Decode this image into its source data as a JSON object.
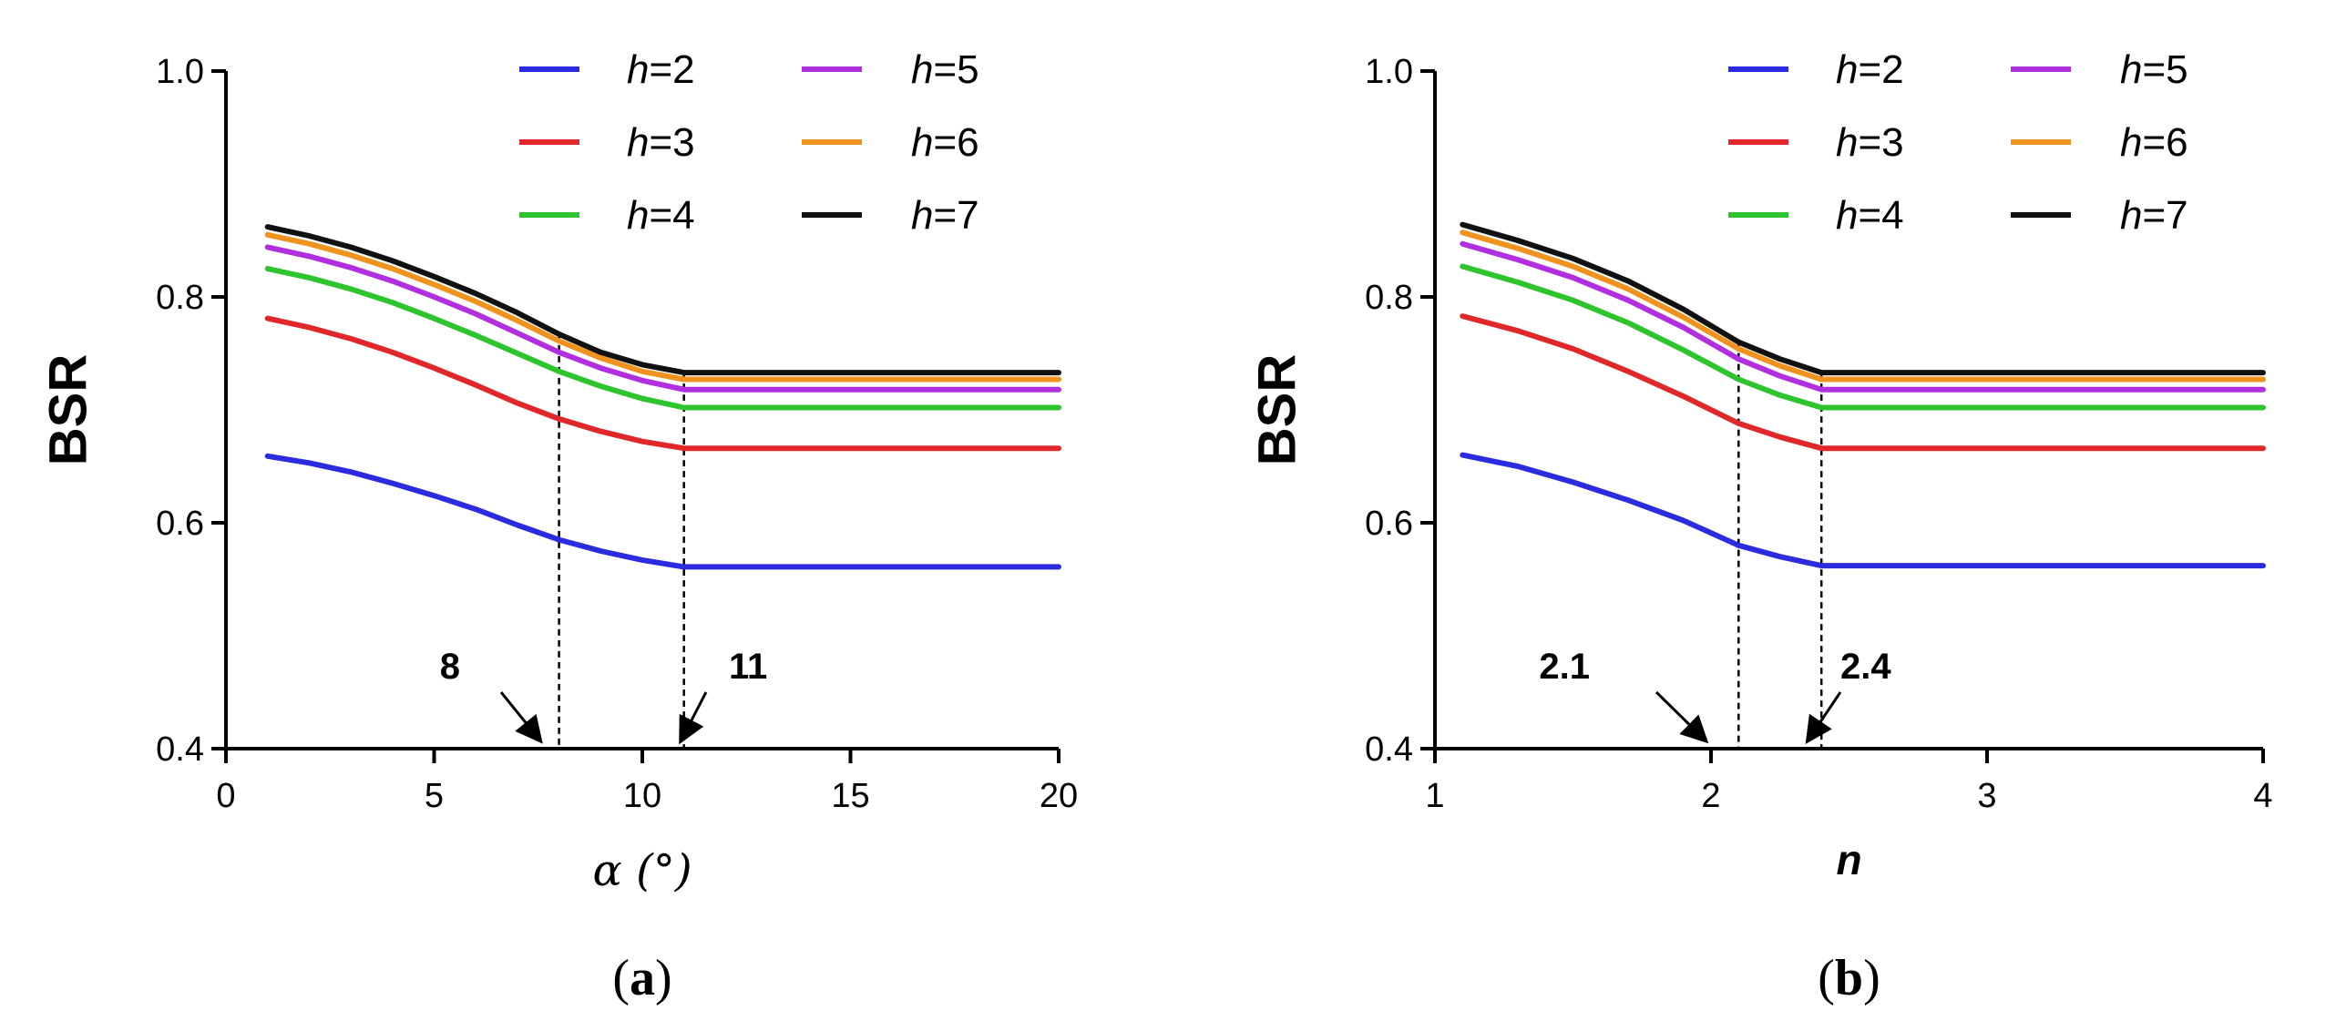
{
  "chart_data": [
    {
      "type": "line",
      "panel_label": "a",
      "xlabel": "α (°)",
      "ylabel": "BSR",
      "xlim": [
        0,
        20
      ],
      "ylim": [
        0.4,
        1.0
      ],
      "xticks": [
        0,
        5,
        10,
        15,
        20
      ],
      "xtick_labels": [
        "0",
        "5",
        "10",
        "15",
        "20"
      ],
      "yticks": [
        0.4,
        0.6,
        0.8,
        1.0
      ],
      "ytick_labels": [
        "0.4",
        "0.6",
        "0.8",
        "1.0"
      ],
      "legend_position": "top-right",
      "series": [
        {
          "name": "h=2",
          "label_var": "h",
          "label_val": "=2",
          "color": "#2B2BE0",
          "x": [
            1,
            2,
            3,
            4,
            5,
            6,
            7,
            8,
            9,
            10,
            11,
            20
          ],
          "y": [
            0.659,
            0.653,
            0.645,
            0.635,
            0.624,
            0.612,
            0.598,
            0.585,
            0.575,
            0.567,
            0.561,
            0.561
          ]
        },
        {
          "name": "h=3",
          "label_var": "h",
          "label_val": "=3",
          "color": "#E0282B",
          "x": [
            1,
            2,
            3,
            4,
            5,
            6,
            7,
            8,
            9,
            10,
            11,
            20
          ],
          "y": [
            0.781,
            0.773,
            0.763,
            0.751,
            0.737,
            0.722,
            0.706,
            0.692,
            0.681,
            0.672,
            0.666,
            0.666
          ]
        },
        {
          "name": "h=4",
          "label_var": "h",
          "label_val": "=4",
          "color": "#2DC42D",
          "x": [
            1,
            2,
            3,
            4,
            5,
            6,
            7,
            8,
            9,
            10,
            11,
            20
          ],
          "y": [
            0.825,
            0.817,
            0.807,
            0.795,
            0.781,
            0.766,
            0.75,
            0.734,
            0.721,
            0.71,
            0.702,
            0.702
          ]
        },
        {
          "name": "h=5",
          "label_var": "h",
          "label_val": "=5",
          "color": "#B22FE0",
          "x": [
            1,
            2,
            3,
            4,
            5,
            6,
            7,
            8,
            9,
            10,
            11,
            20
          ],
          "y": [
            0.844,
            0.836,
            0.826,
            0.814,
            0.8,
            0.785,
            0.768,
            0.751,
            0.737,
            0.726,
            0.718,
            0.718
          ]
        },
        {
          "name": "h=6",
          "label_var": "h",
          "label_val": "=6",
          "color": "#F0921E",
          "x": [
            1,
            2,
            3,
            4,
            5,
            6,
            7,
            8,
            9,
            10,
            11,
            20
          ],
          "y": [
            0.855,
            0.847,
            0.837,
            0.825,
            0.811,
            0.796,
            0.779,
            0.761,
            0.746,
            0.734,
            0.727,
            0.727
          ]
        },
        {
          "name": "h=7",
          "label_var": "h",
          "label_val": "=7",
          "color": "#111111",
          "x": [
            1,
            2,
            3,
            4,
            5,
            6,
            7,
            8,
            9,
            10,
            11,
            20
          ],
          "y": [
            0.862,
            0.854,
            0.844,
            0.832,
            0.818,
            0.803,
            0.786,
            0.767,
            0.751,
            0.74,
            0.733,
            0.733
          ]
        }
      ],
      "reference_lines": [
        {
          "x": 8,
          "label": "8"
        },
        {
          "x": 11,
          "label": "11"
        }
      ]
    },
    {
      "type": "line",
      "panel_label": "b",
      "xlabel": "n",
      "ylabel": "BSR",
      "xlim": [
        1,
        4
      ],
      "ylim": [
        0.4,
        1.0
      ],
      "xticks": [
        1,
        2,
        3,
        4
      ],
      "xtick_labels": [
        "1",
        "2",
        "3",
        "4"
      ],
      "yticks": [
        0.4,
        0.6,
        0.8,
        1.0
      ],
      "ytick_labels": [
        "0.4",
        "0.6",
        "0.8",
        "1.0"
      ],
      "legend_position": "top-right",
      "series": [
        {
          "name": "h=2",
          "label_var": "h",
          "label_val": "=2",
          "color": "#2B2BE0",
          "x": [
            1.1,
            1.3,
            1.5,
            1.7,
            1.9,
            2.1,
            2.25,
            2.4,
            4.0
          ],
          "y": [
            0.66,
            0.65,
            0.636,
            0.62,
            0.602,
            0.58,
            0.57,
            0.562,
            0.562
          ]
        },
        {
          "name": "h=3",
          "label_var": "h",
          "label_val": "=3",
          "color": "#E0282B",
          "x": [
            1.1,
            1.3,
            1.5,
            1.7,
            1.9,
            2.1,
            2.25,
            2.4,
            4.0
          ],
          "y": [
            0.783,
            0.77,
            0.754,
            0.734,
            0.712,
            0.688,
            0.676,
            0.666,
            0.666
          ]
        },
        {
          "name": "h=4",
          "label_var": "h",
          "label_val": "=4",
          "color": "#2DC42D",
          "x": [
            1.1,
            1.3,
            1.5,
            1.7,
            1.9,
            2.1,
            2.25,
            2.4,
            4.0
          ],
          "y": [
            0.827,
            0.813,
            0.797,
            0.777,
            0.753,
            0.727,
            0.713,
            0.702,
            0.702
          ]
        },
        {
          "name": "h=5",
          "label_var": "h",
          "label_val": "=5",
          "color": "#B22FE0",
          "x": [
            1.1,
            1.3,
            1.5,
            1.7,
            1.9,
            2.1,
            2.25,
            2.4,
            4.0
          ],
          "y": [
            0.847,
            0.833,
            0.817,
            0.797,
            0.773,
            0.745,
            0.73,
            0.718,
            0.718
          ]
        },
        {
          "name": "h=6",
          "label_var": "h",
          "label_val": "=6",
          "color": "#F0921E",
          "x": [
            1.1,
            1.3,
            1.5,
            1.7,
            1.9,
            2.1,
            2.25,
            2.4,
            4.0
          ],
          "y": [
            0.857,
            0.843,
            0.827,
            0.807,
            0.782,
            0.754,
            0.739,
            0.727,
            0.727
          ]
        },
        {
          "name": "h=7",
          "label_var": "h",
          "label_val": "=7",
          "color": "#111111",
          "x": [
            1.1,
            1.3,
            1.5,
            1.7,
            1.9,
            2.1,
            2.25,
            2.4,
            4.0
          ],
          "y": [
            0.864,
            0.85,
            0.834,
            0.814,
            0.789,
            0.76,
            0.745,
            0.733,
            0.733
          ]
        }
      ],
      "reference_lines": [
        {
          "x": 2.1,
          "label": "2.1"
        },
        {
          "x": 2.4,
          "label": "2.4"
        }
      ]
    }
  ]
}
